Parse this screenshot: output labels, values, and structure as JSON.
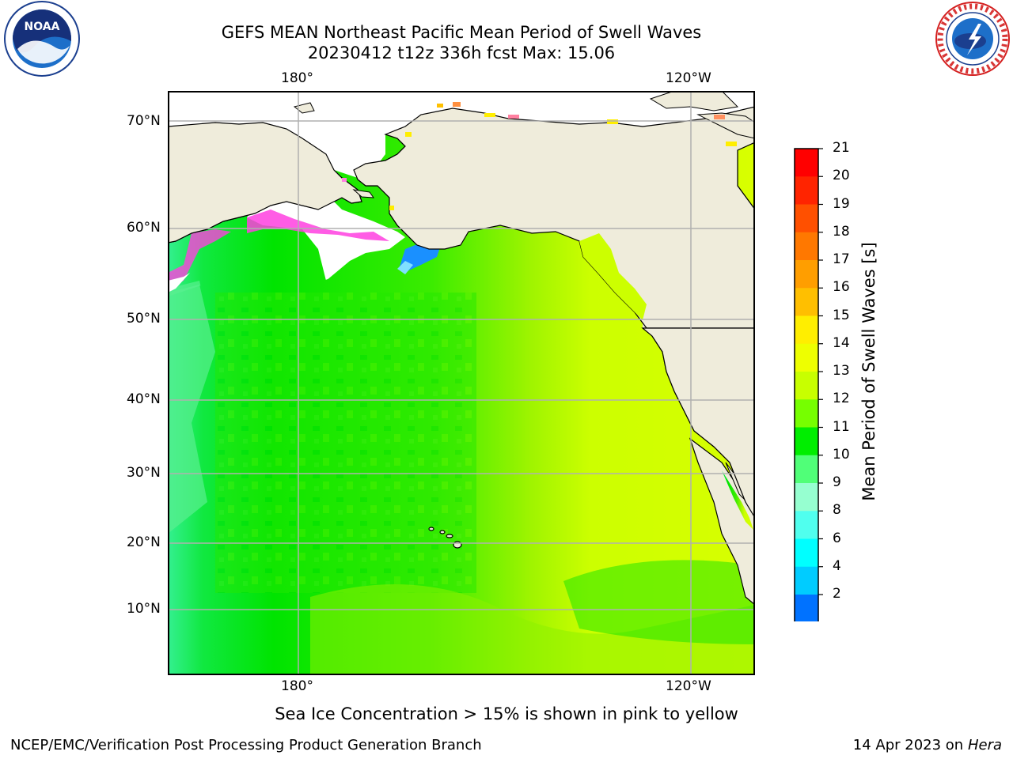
{
  "header": {
    "title_line1": "GEFS MEAN Northeast Pacific Mean Period of Swell Waves",
    "title_line2": "20230412 t12z 336h fcst   Max: 15.06"
  },
  "logos": {
    "left": {
      "name": "noaa-logo",
      "text": "NOAA"
    },
    "right": {
      "name": "nws-logo",
      "text": "NATIONAL WEATHER SERVICE"
    }
  },
  "map": {
    "lon_ticks": [
      "180°",
      "120°W"
    ],
    "lat_ticks": [
      "70°N",
      "60°N",
      "50°N",
      "40°N",
      "30°N",
      "20°N",
      "10°N"
    ],
    "land_color": "#efecdb",
    "gridline_color": "#b0b0b0"
  },
  "colorbar": {
    "label": "Mean Period of Swell Waves [s]",
    "ticks": [
      "21",
      "20",
      "19",
      "18",
      "17",
      "16",
      "15",
      "14",
      "13",
      "12",
      "11",
      "10",
      "9",
      "8",
      "6",
      "4",
      "2"
    ],
    "colors": [
      "#ff0000",
      "#ff2400",
      "#ff5000",
      "#ff7800",
      "#ff9e00",
      "#ffbf00",
      "#ffee00",
      "#eeff00",
      "#c8ff00",
      "#76ff00",
      "#00ee00",
      "#50ff78",
      "#96ffd0",
      "#50ffee",
      "#00ffff",
      "#00ccff",
      "#0072ff"
    ],
    "extend_color": "#0000ee"
  },
  "caption": "Sea Ice Concentration > 15% is shown in pink to yellow",
  "footer": {
    "left": "NCEP/EMC/Verification Post Processing Product Generation Branch",
    "right_prefix": "14 Apr 2023 on ",
    "right_italic": "Hera"
  }
}
